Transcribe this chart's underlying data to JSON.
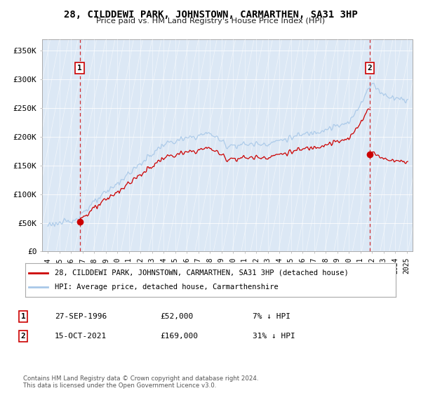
{
  "title": "28, CILDDEWI PARK, JOHNSTOWN, CARMARTHEN, SA31 3HP",
  "subtitle": "Price paid vs. HM Land Registry's House Price Index (HPI)",
  "legend_line1": "28, CILDDEWI PARK, JOHNSTOWN, CARMARTHEN, SA31 3HP (detached house)",
  "legend_line2": "HPI: Average price, detached house, Carmarthenshire",
  "transaction1_date": "27-SEP-1996",
  "transaction1_price": "£52,000",
  "transaction1_hpi": "7% ↓ HPI",
  "transaction2_date": "15-OCT-2021",
  "transaction2_price": "£169,000",
  "transaction2_hpi": "31% ↓ HPI",
  "footer": "Contains HM Land Registry data © Crown copyright and database right 2024.\nThis data is licensed under the Open Government Licence v3.0.",
  "hpi_color": "#a8c8e8",
  "price_color": "#cc0000",
  "marker_color": "#cc0000",
  "annotation_box_color": "#cc0000",
  "ylim": [
    0,
    370000
  ],
  "yticks": [
    0,
    50000,
    100000,
    150000,
    200000,
    250000,
    300000,
    350000
  ],
  "ytick_labels": [
    "£0",
    "£50K",
    "£100K",
    "£150K",
    "£200K",
    "£250K",
    "£300K",
    "£350K"
  ],
  "t1_year": 1996.75,
  "t1_price": 52000,
  "t2_year": 2021.79,
  "t2_price": 169000
}
